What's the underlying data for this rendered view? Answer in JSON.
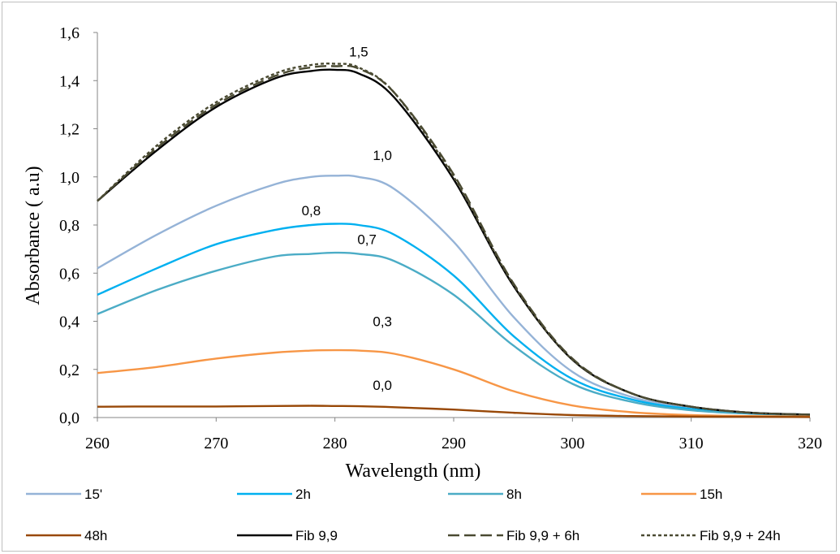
{
  "chart_data": {
    "type": "line",
    "xlabel": "Wavelength (nm)",
    "ylabel": "Absorbance ( a.u)",
    "xlim": [
      260,
      320
    ],
    "ylim": [
      0,
      1.6
    ],
    "x_ticks": [
      "260",
      "270",
      "280",
      "290",
      "300",
      "310",
      "320"
    ],
    "y_ticks": [
      "0,0",
      "0,2",
      "0,4",
      "0,6",
      "0,8",
      "1,0",
      "1,2",
      "1,4",
      "1,6"
    ],
    "legend_position": "bottom",
    "x": [
      260,
      265,
      270,
      275,
      278,
      280,
      282,
      285,
      290,
      295,
      300,
      305,
      310,
      315,
      320
    ],
    "series": [
      {
        "name": "15'",
        "color": "#95b3d7",
        "dash": "solid",
        "values": [
          0.62,
          0.76,
          0.88,
          0.97,
          1.0,
          1.005,
          1.0,
          0.95,
          0.73,
          0.42,
          0.19,
          0.085,
          0.04,
          0.02,
          0.012
        ]
      },
      {
        "name": "2h",
        "color": "#00b0f0",
        "dash": "solid",
        "values": [
          0.51,
          0.62,
          0.72,
          0.78,
          0.8,
          0.805,
          0.8,
          0.76,
          0.59,
          0.34,
          0.16,
          0.075,
          0.035,
          0.018,
          0.012
        ]
      },
      {
        "name": "8h",
        "color": "#4bacc6",
        "dash": "solid",
        "values": [
          0.43,
          0.53,
          0.61,
          0.67,
          0.68,
          0.685,
          0.68,
          0.65,
          0.51,
          0.3,
          0.14,
          0.065,
          0.03,
          0.016,
          0.01
        ]
      },
      {
        "name": "15h",
        "color": "#f79646",
        "dash": "solid",
        "values": [
          0.185,
          0.21,
          0.245,
          0.27,
          0.278,
          0.28,
          0.278,
          0.265,
          0.2,
          0.11,
          0.05,
          0.022,
          0.01,
          0.006,
          0.004
        ]
      },
      {
        "name": "48h",
        "color": "#984807",
        "dash": "solid",
        "values": [
          0.045,
          0.046,
          0.046,
          0.048,
          0.049,
          0.048,
          0.047,
          0.043,
          0.033,
          0.02,
          0.01,
          0.006,
          0.004,
          0.003,
          0.002
        ]
      },
      {
        "name": "Fib 9,9",
        "color": "#000000",
        "dash": "solid",
        "values": [
          0.9,
          1.11,
          1.29,
          1.41,
          1.44,
          1.445,
          1.43,
          1.33,
          0.99,
          0.55,
          0.24,
          0.1,
          0.045,
          0.02,
          0.012
        ]
      },
      {
        "name": "Fib 9,9 + 6h",
        "color": "#4a4a32",
        "dash": "long",
        "values": [
          0.9,
          1.12,
          1.3,
          1.42,
          1.455,
          1.46,
          1.45,
          1.35,
          1.01,
          0.56,
          0.245,
          0.1,
          0.045,
          0.02,
          0.012
        ]
      },
      {
        "name": "Fib 9,9 + 24h",
        "color": "#4a4a32",
        "dash": "short",
        "values": [
          0.9,
          1.13,
          1.31,
          1.43,
          1.465,
          1.47,
          1.455,
          1.35,
          1.0,
          0.555,
          0.24,
          0.1,
          0.045,
          0.02,
          0.012
        ]
      }
    ],
    "annotations": [
      {
        "text": "1,5",
        "x": 282,
        "y": 1.5
      },
      {
        "text": "1,0",
        "x": 284,
        "y": 1.07
      },
      {
        "text": "0,8",
        "x": 278,
        "y": 0.84
      },
      {
        "text": "0,7",
        "x": 282.7,
        "y": 0.72
      },
      {
        "text": "0,3",
        "x": 284,
        "y": 0.38
      },
      {
        "text": "0,0",
        "x": 284,
        "y": 0.115
      }
    ]
  }
}
